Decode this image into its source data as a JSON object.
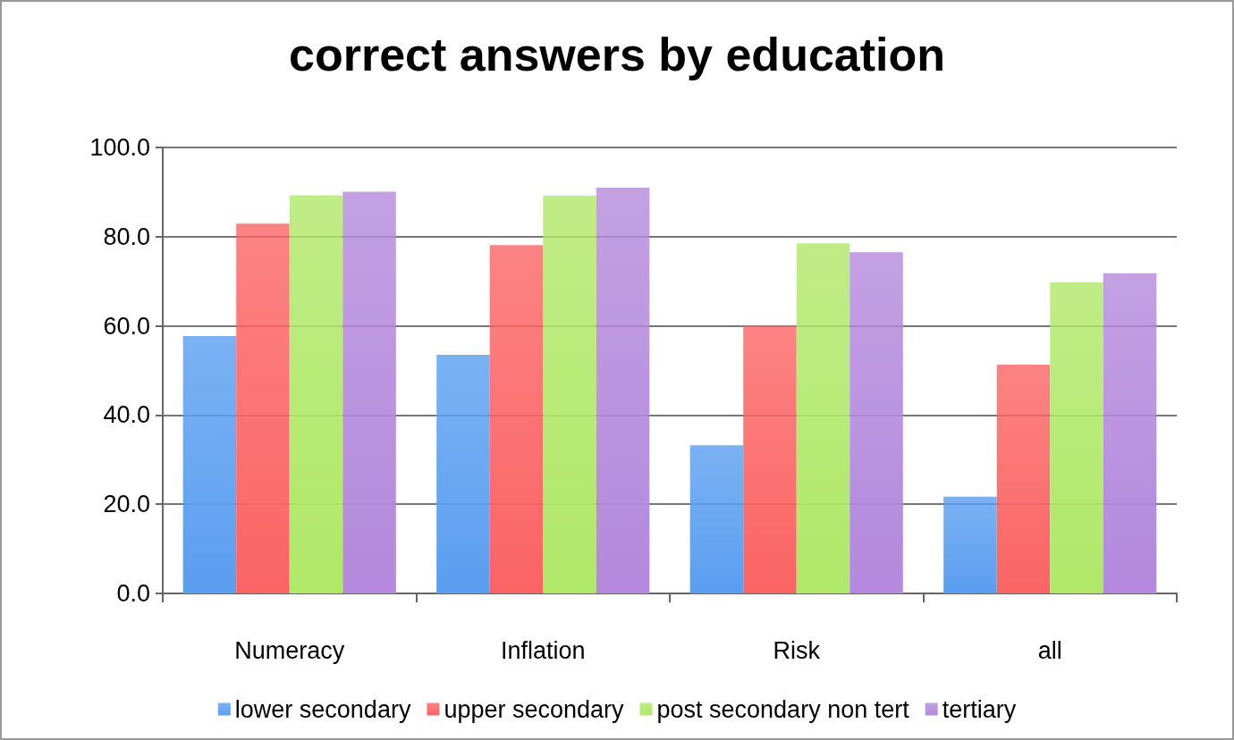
{
  "chart_data": {
    "type": "bar",
    "title": "correct answers by education",
    "categories": [
      "Numeracy",
      "Inflation",
      "Risk",
      "all"
    ],
    "series": [
      {
        "name": "lower secondary",
        "color": "#5a9ef0",
        "values": [
          57.7,
          53.5,
          33.2,
          21.7
        ]
      },
      {
        "name": "upper secondary",
        "color": "#fb6464",
        "values": [
          82.9,
          78.1,
          60.0,
          51.3
        ]
      },
      {
        "name": "post secondary non tert",
        "color": "#b0e868",
        "values": [
          89.3,
          89.2,
          78.5,
          69.8
        ]
      },
      {
        "name": "tertiary",
        "color": "#b488dc",
        "values": [
          90.1,
          91.0,
          76.5,
          71.8
        ]
      }
    ],
    "ylim": [
      0,
      100
    ],
    "yticks": [
      {
        "value": 0,
        "label": "0.0"
      },
      {
        "value": 20,
        "label": "20.0"
      },
      {
        "value": 40,
        "label": "40.0"
      },
      {
        "value": 60,
        "label": "60.0"
      },
      {
        "value": 80,
        "label": "80.0"
      },
      {
        "value": 100,
        "label": "100.0"
      }
    ],
    "grid": "y",
    "legend": "bottom"
  }
}
